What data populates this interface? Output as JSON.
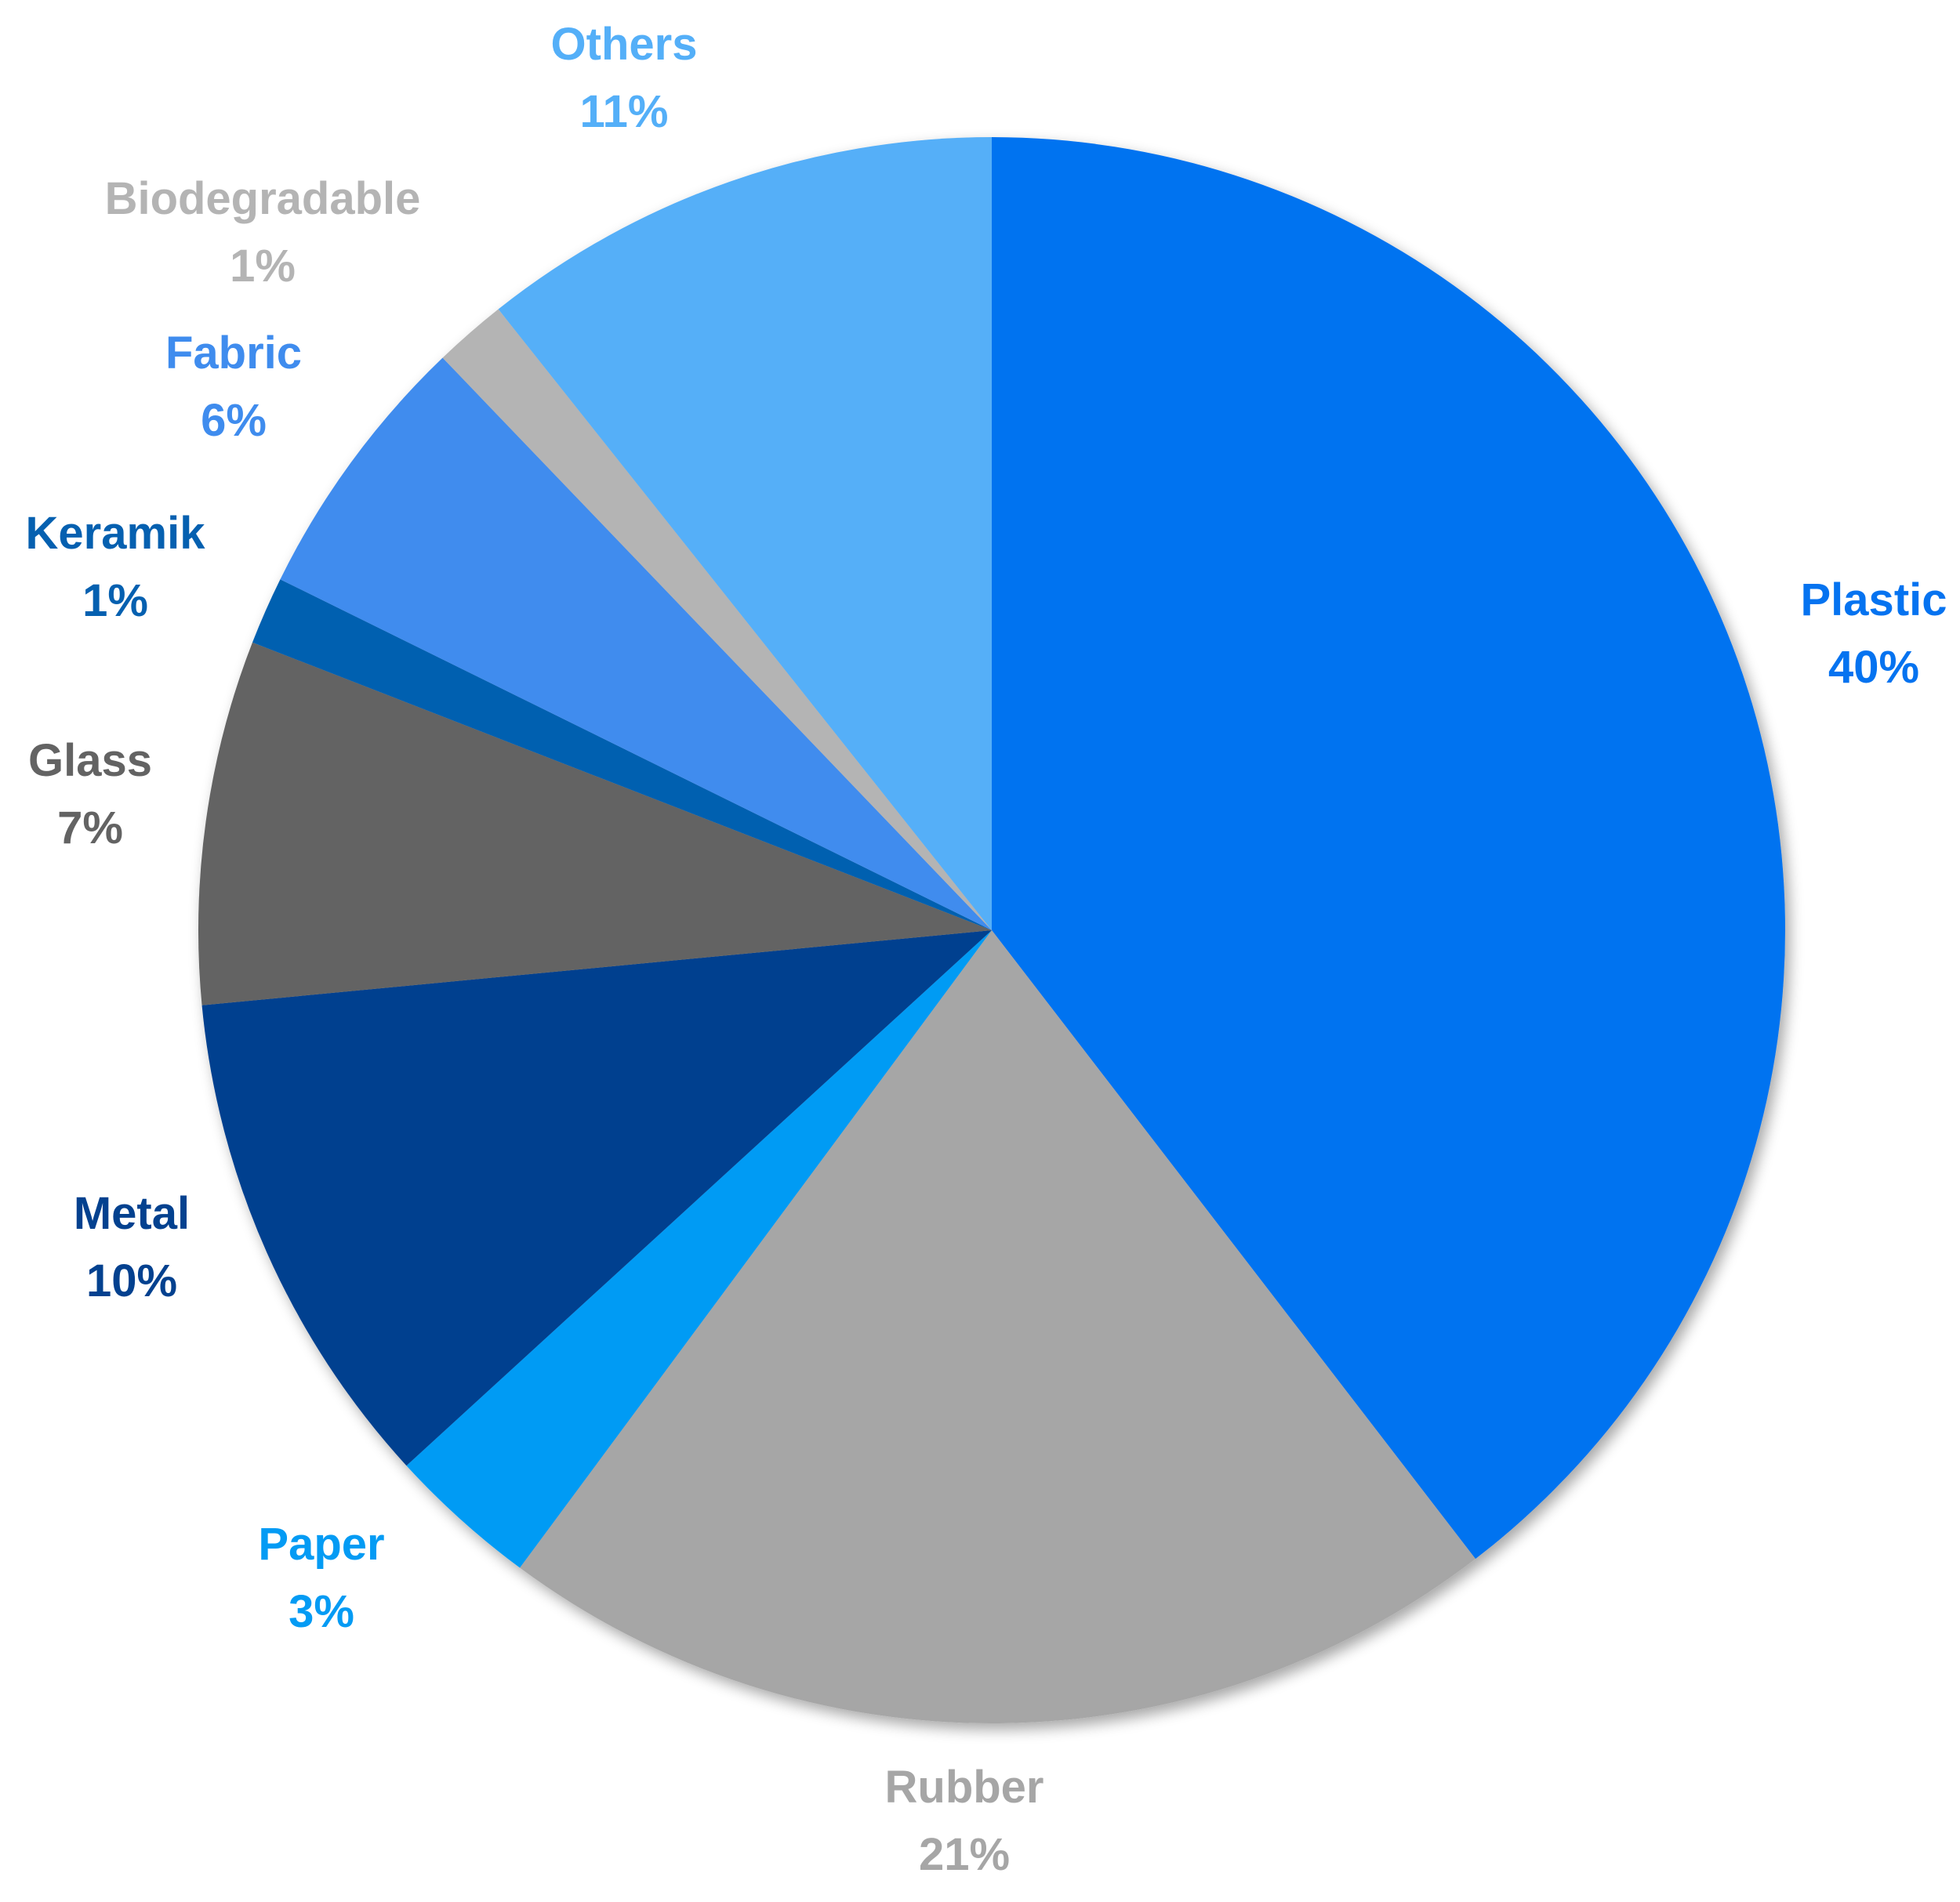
{
  "chart_data": {
    "type": "pie",
    "title": "",
    "start": "top",
    "direction": "clockwise",
    "legend": "none",
    "slices": [
      {
        "label": "Plastic",
        "percent_text": "40%",
        "value": 40.0,
        "color": "#0573F0"
      },
      {
        "label": "Rubber",
        "percent_text": "21%",
        "value": 20.8,
        "color": "#A6A6A6"
      },
      {
        "label": "Paper",
        "percent_text": "3%",
        "value": 3.1,
        "color": "#049BF4"
      },
      {
        "label": "Metal",
        "percent_text": "10%",
        "value": 10.4,
        "color": "#03418F"
      },
      {
        "label": "Glass",
        "percent_text": "7%",
        "value": 7.5,
        "color": "#636363"
      },
      {
        "label": "Keramik",
        "percent_text": "1%",
        "value": 1.4,
        "color": "#0560B0"
      },
      {
        "label": "Fabric",
        "percent_text": "6%",
        "value": 5.6,
        "color": "#3F8CEE"
      },
      {
        "label": "Biodegradable",
        "percent_text": "1%",
        "value": 1.5,
        "color": "#B4B4B4"
      },
      {
        "label": "Others",
        "percent_text": "11%",
        "value": 10.8,
        "color": "#54AFF8"
      }
    ]
  }
}
